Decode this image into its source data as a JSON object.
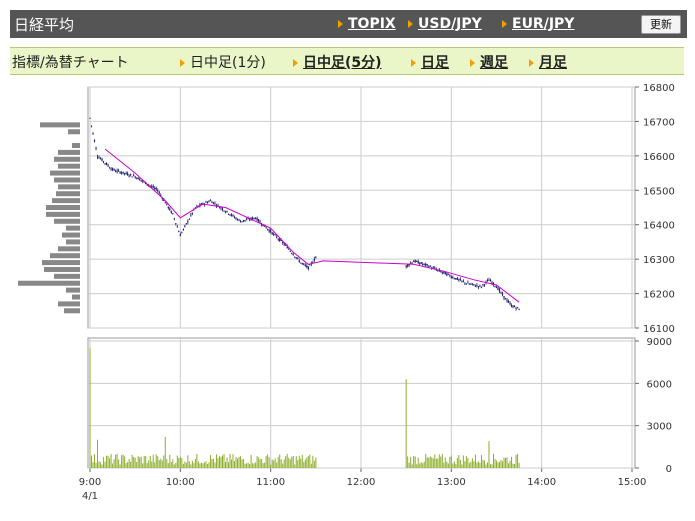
{
  "header": {
    "title": "日経平均",
    "links": [
      "TOPIX",
      "USD/JPY",
      "EUR/JPY"
    ],
    "update_button": "更新"
  },
  "timeframe": {
    "label": "指標/為替チャート",
    "options": [
      {
        "label": "日中足(1分)",
        "linked": false
      },
      {
        "label": "日中足(5分)",
        "linked": true
      },
      {
        "label": "日足",
        "linked": true
      },
      {
        "label": "週足",
        "linked": true
      },
      {
        "label": "月足",
        "linked": true
      }
    ]
  },
  "colors": {
    "candles": "#1a1a6e",
    "moving_average": "#cc00cc",
    "volume": "#8cae2a",
    "volume_profile": "#888888",
    "grid": "#cccccc",
    "title_bar": "#555555",
    "tab_bar": "#eaf5c8",
    "arrow": "#f0a000"
  },
  "chart_data": [
    {
      "type": "candlestick",
      "title": "",
      "ylim": [
        16100,
        16800
      ],
      "yticks": [
        "16800",
        "16700",
        "16600",
        "16500",
        "16400",
        "16300",
        "16200",
        "16100"
      ],
      "price_path": [
        [
          "9:00",
          16710
        ],
        [
          "9:05",
          16600
        ],
        [
          "9:15",
          16560
        ],
        [
          "9:30",
          16540
        ],
        [
          "9:45",
          16500
        ],
        [
          "9:55",
          16430
        ],
        [
          "10:00",
          16370
        ],
        [
          "10:10",
          16450
        ],
        [
          "10:20",
          16470
        ],
        [
          "10:30",
          16440
        ],
        [
          "10:40",
          16410
        ],
        [
          "10:50",
          16420
        ],
        [
          "11:00",
          16380
        ],
        [
          "11:10",
          16340
        ],
        [
          "11:20",
          16290
        ],
        [
          "11:25",
          16275
        ],
        [
          "11:30",
          16305
        ],
        [
          "11:35",
          16290
        ],
        [
          "12:30",
          16280
        ],
        [
          "12:35",
          16295
        ],
        [
          "12:45",
          16280
        ],
        [
          "12:55",
          16260
        ],
        [
          "13:00",
          16250
        ],
        [
          "13:10",
          16230
        ],
        [
          "13:20",
          16220
        ],
        [
          "13:25",
          16240
        ],
        [
          "13:30",
          16220
        ],
        [
          "13:35",
          16190
        ],
        [
          "13:40",
          16165
        ],
        [
          "13:45",
          16155
        ]
      ],
      "moving_average_path": [
        [
          "9:10",
          16620
        ],
        [
          "9:30",
          16550
        ],
        [
          "9:50",
          16470
        ],
        [
          "10:00",
          16420
        ],
        [
          "10:15",
          16460
        ],
        [
          "10:30",
          16450
        ],
        [
          "10:45",
          16420
        ],
        [
          "11:00",
          16390
        ],
        [
          "11:15",
          16320
        ],
        [
          "11:25",
          16285
        ],
        [
          "11:35",
          16295
        ],
        [
          "12:35",
          16285
        ],
        [
          "12:55",
          16265
        ],
        [
          "13:15",
          16240
        ],
        [
          "13:30",
          16225
        ],
        [
          "13:45",
          16175
        ]
      ],
      "volume_profile": [
        {
          "price": 16690,
          "volume": 40
        },
        {
          "price": 16670,
          "volume": 12
        },
        {
          "price": 16630,
          "volume": 8
        },
        {
          "price": 16610,
          "volume": 22
        },
        {
          "price": 16590,
          "volume": 26
        },
        {
          "price": 16570,
          "volume": 22
        },
        {
          "price": 16550,
          "volume": 30
        },
        {
          "price": 16530,
          "volume": 26
        },
        {
          "price": 16510,
          "volume": 22
        },
        {
          "price": 16490,
          "volume": 24
        },
        {
          "price": 16470,
          "volume": 28
        },
        {
          "price": 16450,
          "volume": 34
        },
        {
          "price": 16430,
          "volume": 34
        },
        {
          "price": 16410,
          "volume": 26
        },
        {
          "price": 16390,
          "volume": 14
        },
        {
          "price": 16370,
          "volume": 18
        },
        {
          "price": 16350,
          "volume": 14
        },
        {
          "price": 16330,
          "volume": 22
        },
        {
          "price": 16310,
          "volume": 30
        },
        {
          "price": 16290,
          "volume": 38
        },
        {
          "price": 16270,
          "volume": 36
        },
        {
          "price": 16250,
          "volume": 26
        },
        {
          "price": 16230,
          "volume": 62
        },
        {
          "price": 16210,
          "volume": 14
        },
        {
          "price": 16190,
          "volume": 8
        },
        {
          "price": 16170,
          "volume": 22
        },
        {
          "price": 16150,
          "volume": 16
        }
      ]
    },
    {
      "type": "bar",
      "title": "",
      "ylim": [
        0,
        9000
      ],
      "yticks": [
        "9000",
        "6000",
        "3000",
        "0"
      ],
      "xticks": [
        "9:00",
        "10:00",
        "11:00",
        "12:00",
        "13:00",
        "14:00",
        "15:00"
      ],
      "date_label": "4/1",
      "sessions": [
        [
          "9:00",
          "11:30"
        ],
        [
          "12:30",
          "13:45"
        ]
      ],
      "spikes": [
        {
          "time": "9:00",
          "volume": 8500
        },
        {
          "time": "9:05",
          "volume": 2000
        },
        {
          "time": "9:50",
          "volume": 2200
        },
        {
          "time": "12:30",
          "volume": 6300
        },
        {
          "time": "13:25",
          "volume": 1900
        }
      ],
      "typical_volume": 600
    }
  ]
}
